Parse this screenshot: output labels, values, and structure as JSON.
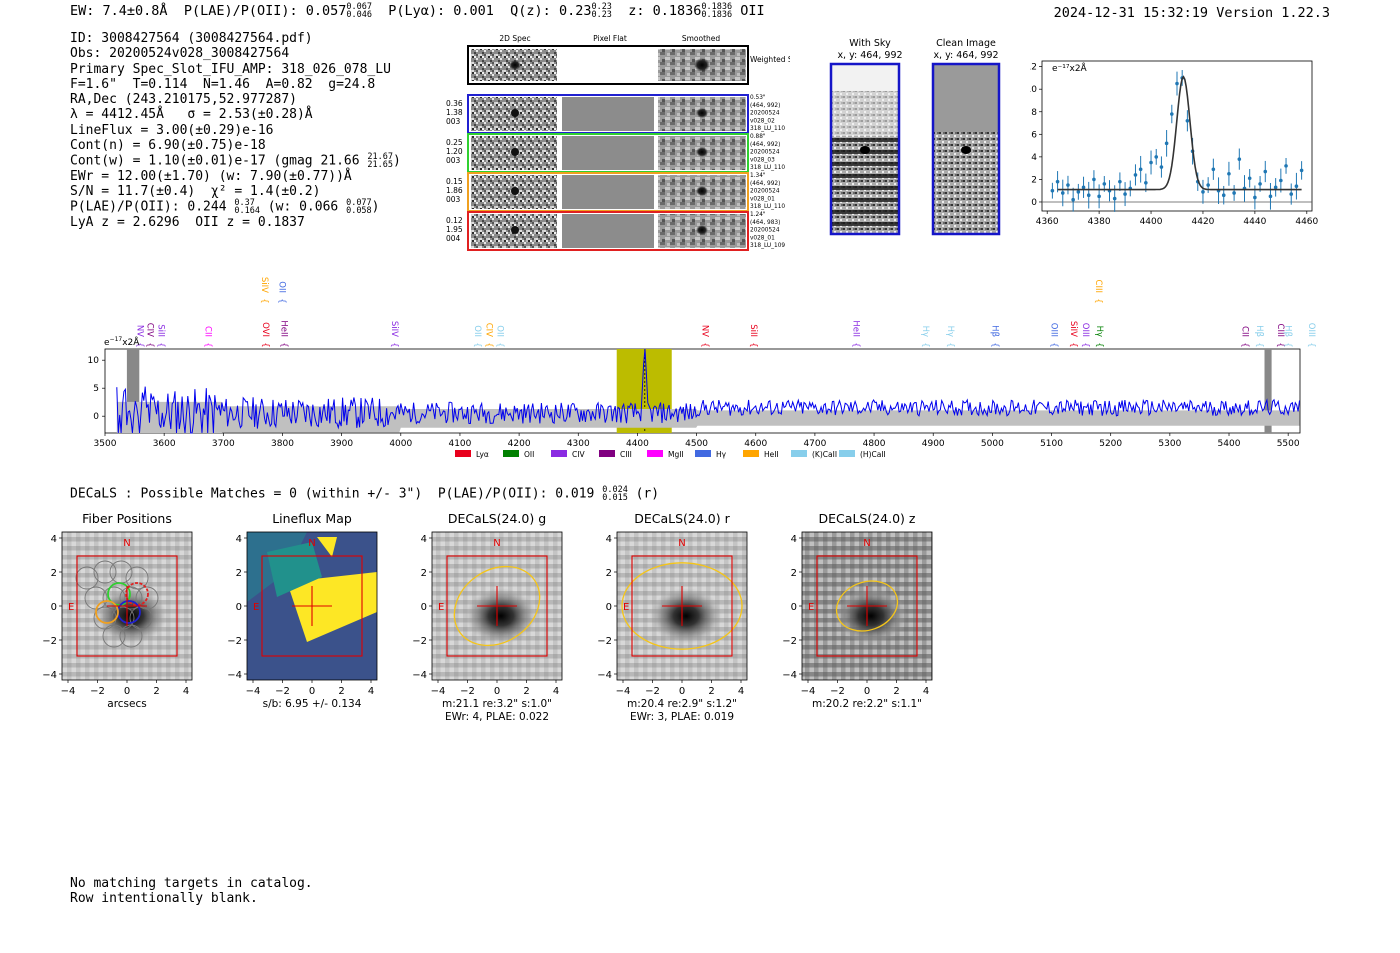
{
  "header": {
    "ew": "EW: 7.4±0.8Å",
    "plae_label": "P(LAE)/P(OII): 0.057",
    "plae_hi": "0.067",
    "plae_lo": "0.046",
    "plya": "P(Lyα): 0.001",
    "q_label": "Q(z): 0.23",
    "q_hi": "0.23",
    "q_lo": "0.23",
    "z_label": "z: 0.1836",
    "z_hi": "0.1836",
    "z_lo": "0.1836",
    "z_line": "OII",
    "datetime": "2024-12-31 15:32:19",
    "version": "Version 1.22.3"
  },
  "info": {
    "id": "ID: 3008427564 (3008427564.pdf)",
    "obs": "Obs: 20200524v028_3008427564",
    "primary": "Primary Spec_Slot_IFU_AMP: 318_026_078_LU",
    "params": "F=1.6\"  T=0.114  N=1.46  A=0.82  g=24.8",
    "radec": "RA,Dec (243.210175,52.977287)",
    "lambda": "λ = 4412.45Å   σ = 2.53(±0.28)Å",
    "lineflux": "LineFlux = 3.00(±0.29)e-16",
    "contn": "Cont(n) = 6.90(±0.75)e-18",
    "contw": "Cont(w) = 1.10(±0.01)e-17 (gmag 21.66",
    "contw_hi": "21.67",
    "contw_lo": "21.65",
    "contw_end": ")",
    "ewr": "EWr = 12.00(±1.70) (w: 7.90(±0.77))Å",
    "sn": "S/N = 11.7(±0.4)  χ² = 1.4(±0.2)",
    "plae": "P(LAE)/P(OII): 0.244",
    "plae_hi": "0.37",
    "plae_lo": "0.164",
    "plae_w": " (w: 0.066",
    "plae_w_hi": "0.077",
    "plae_w_lo": "0.058",
    "plae_end": ")",
    "lyaz": "LyA z = 2.6296  OII z = 0.1837"
  },
  "cutouts": {
    "col_2d": "2D Spec",
    "col_flat": "Pixel Flat",
    "col_smooth": "Smoothed",
    "weighted": "Weighted Sum",
    "rows": [
      {
        "left": [
          "0.36",
          "1.38",
          "003"
        ],
        "right": [
          "0.53\"",
          "(464, 992)",
          "20200524",
          "v028_02",
          "318_LU_110"
        ],
        "color": "#2020d0"
      },
      {
        "left": [
          "0.25",
          "1.20",
          "003"
        ],
        "right": [
          "0.88\"",
          "(464, 992)",
          "20200524",
          "v028_03",
          "318_LU_110"
        ],
        "color": "#30d030"
      },
      {
        "left": [
          "0.15",
          "1.86",
          "003"
        ],
        "right": [
          "1.34\"",
          "(464, 992)",
          "20200524",
          "v028_01",
          "318_LU_110"
        ],
        "color": "#f0a020"
      },
      {
        "left": [
          "0.12",
          "1.95",
          "004"
        ],
        "right": [
          "1.24\"",
          "(464, 983)",
          "20200524",
          "v028_01",
          "318_LU_109"
        ],
        "color": "#e02020"
      }
    ]
  },
  "sky": {
    "with_sky": "With Sky",
    "with_sky_xy": "x, y: 464, 992",
    "clean": "Clean Image",
    "clean_xy": "x, y: 464, 992"
  },
  "zoom_chart": {
    "ylabel": "e⁻¹⁷x2Å",
    "xticks": [
      "4360",
      "4380",
      "4400",
      "4420",
      "4440",
      "4460"
    ],
    "yticks": [
      "0",
      "2",
      "4",
      "6",
      "8",
      "10",
      "12"
    ]
  },
  "chart_data": [
    {
      "type": "scatter",
      "title": "Zoomed emission line fit",
      "xlabel": "",
      "ylabel": "e-17 x2A",
      "xlim": [
        4358,
        4462
      ],
      "ylim": [
        -0.8,
        12.5
      ],
      "x": [
        4362,
        4364,
        4366,
        4368,
        4370,
        4372,
        4374,
        4376,
        4378,
        4380,
        4382,
        4384,
        4386,
        4388,
        4390,
        4392,
        4394,
        4396,
        4398,
        4400,
        4402,
        4404,
        4406,
        4408,
        4410,
        4412,
        4414,
        4416,
        4418,
        4420,
        4422,
        4424,
        4426,
        4428,
        4430,
        4432,
        4434,
        4436,
        4438,
        4440,
        4442,
        4444,
        4446,
        4448,
        4450,
        4452,
        4454,
        4456,
        4458
      ],
      "y": [
        1.0,
        1.8,
        0.8,
        1.5,
        0.2,
        0.9,
        1.3,
        0.6,
        2.0,
        0.5,
        1.6,
        1.0,
        0.3,
        1.8,
        0.7,
        1.2,
        2.4,
        2.9,
        1.7,
        3.5,
        4.0,
        3.1,
        5.2,
        7.8,
        10.5,
        11.0,
        7.2,
        4.5,
        1.8,
        0.9,
        1.5,
        2.9,
        1.0,
        0.6,
        2.5,
        0.8,
        3.8,
        1.2,
        2.1,
        0.4,
        1.6,
        2.7,
        0.5,
        1.3,
        1.9,
        3.2,
        0.7,
        1.4,
        2.8
      ],
      "fit": {
        "center": 4412.45,
        "sigma": 2.53,
        "amplitude": 10.0,
        "continuum": 1.1
      }
    },
    {
      "type": "line",
      "title": "Full spectrum",
      "xlabel": "",
      "ylabel": "e-17 x2A",
      "xlim": [
        3500,
        5520
      ],
      "ylim": [
        -3,
        12
      ],
      "xticks": [
        3500,
        3600,
        3700,
        3800,
        3900,
        4000,
        4100,
        4200,
        4300,
        4400,
        4500,
        4600,
        4700,
        4800,
        4900,
        5000,
        5100,
        5200,
        5300,
        5400,
        5500
      ],
      "yticks": [
        0,
        5,
        10
      ],
      "highlight_range": [
        4365,
        4458
      ],
      "peak": 4412.45,
      "legend": [
        "Lyα",
        "OII",
        "CIV",
        "CIII",
        "MgII",
        "Hγ",
        "HeII",
        "(K)CaII",
        "(H)CaII"
      ],
      "legend_colors": [
        "#e8001c",
        "#008000",
        "#8a2be2",
        "#800080",
        "#ff00ff",
        "#4169e1",
        "#ffa500",
        "#87ceeb",
        "#87ceeb"
      ]
    }
  ],
  "line_markers": [
    {
      "label": "NV",
      "wave": 3550,
      "color": "#8a2be2",
      "row": "low"
    },
    {
      "label": "CIV",
      "wave": 3567,
      "color": "#800080",
      "row": "low"
    },
    {
      "label": "SiII",
      "wave": 3585,
      "color": "#8a2be2",
      "row": "low"
    },
    {
      "label": "CII",
      "wave": 3665,
      "color": "#ff00ff",
      "row": "low"
    },
    {
      "label": "SiIV",
      "wave": 3760,
      "color": "#ffa500",
      "row": "high"
    },
    {
      "label": "OVI",
      "wave": 3762,
      "color": "#e8001c",
      "row": "low"
    },
    {
      "label": "OII",
      "wave": 3790,
      "color": "#4169e1",
      "row": "high"
    },
    {
      "label": "HeII",
      "wave": 3793,
      "color": "#800080",
      "row": "low"
    },
    {
      "label": "SiIV",
      "wave": 3980,
      "color": "#8a2be2",
      "row": "low"
    },
    {
      "label": "OII",
      "wave": 4120,
      "color": "#87ceeb",
      "row": "low"
    },
    {
      "label": "CIV",
      "wave": 4140,
      "color": "#ffa500",
      "row": "low"
    },
    {
      "label": "OII",
      "wave": 4158,
      "color": "#87ceeb",
      "row": "low"
    },
    {
      "label": "NV",
      "wave": 4505,
      "color": "#e8001c",
      "row": "low"
    },
    {
      "label": "SiII",
      "wave": 4587,
      "color": "#e8001c",
      "row": "low"
    },
    {
      "label": "HeII",
      "wave": 4760,
      "color": "#8a2be2",
      "row": "low"
    },
    {
      "label": "Hγ",
      "wave": 4878,
      "color": "#87ceeb",
      "row": "low"
    },
    {
      "label": "Hγ",
      "wave": 4920,
      "color": "#87ceeb",
      "row": "low"
    },
    {
      "label": "Hβ",
      "wave": 4995,
      "color": "#4169e1",
      "row": "low"
    },
    {
      "label": "OIII",
      "wave": 5095,
      "color": "#4169e1",
      "row": "low"
    },
    {
      "label": "SiIV",
      "wave": 5128,
      "color": "#e8001c",
      "row": "low"
    },
    {
      "label": "OIII",
      "wave": 5148,
      "color": "#8a2be2",
      "row": "low"
    },
    {
      "label": "CIII",
      "wave": 5170,
      "color": "#ffa500",
      "row": "high"
    },
    {
      "label": "Hγ",
      "wave": 5172,
      "color": "#008000",
      "row": "low"
    },
    {
      "label": "CII",
      "wave": 5418,
      "color": "#800080",
      "row": "low"
    },
    {
      "label": "Hβ",
      "wave": 5442,
      "color": "#87ceeb",
      "row": "low"
    },
    {
      "label": "CIII",
      "wave": 5478,
      "color": "#800080",
      "row": "low"
    },
    {
      "label": "Hβ",
      "wave": 5490,
      "color": "#87ceeb",
      "row": "low"
    },
    {
      "label": "OIII",
      "wave": 5530,
      "color": "#87ceeb",
      "row": "low"
    }
  ],
  "decals": {
    "summary": "DECaLS : Possible Matches = 0 (within +/- 3\")  P(LAE)/P(OII): 0.019",
    "summary_hi": "0.024",
    "summary_lo": "0.015",
    "summary_end": "(r)",
    "panels": [
      {
        "title": "Fiber Positions",
        "caption1": "arcsecs",
        "caption2": ""
      },
      {
        "title": "Lineflux Map",
        "caption1": "s/b: 6.95 +/- 0.134",
        "caption2": ""
      },
      {
        "title": "DECaLS(24.0) g",
        "caption1": "m:21.1  re:3.2\"  s:1.0\"",
        "caption2": "EWr: 4, PLAE: 0.022"
      },
      {
        "title": "DECaLS(24.0) r",
        "caption1": "m:20.4  re:2.9\"  s:1.2\"",
        "caption2": "EWr: 3, PLAE: 0.019"
      },
      {
        "title": "DECaLS(24.0) z",
        "caption1": "m:20.2  re:2.2\"  s:1.1\"",
        "caption2": ""
      }
    ],
    "axis_ticks": [
      "−4",
      "−2",
      "0",
      "2",
      "4"
    ],
    "compass_n": "N",
    "compass_e": "E"
  },
  "footer": {
    "line1": "No matching targets in catalog.",
    "line2": "Row intentionally blank."
  }
}
